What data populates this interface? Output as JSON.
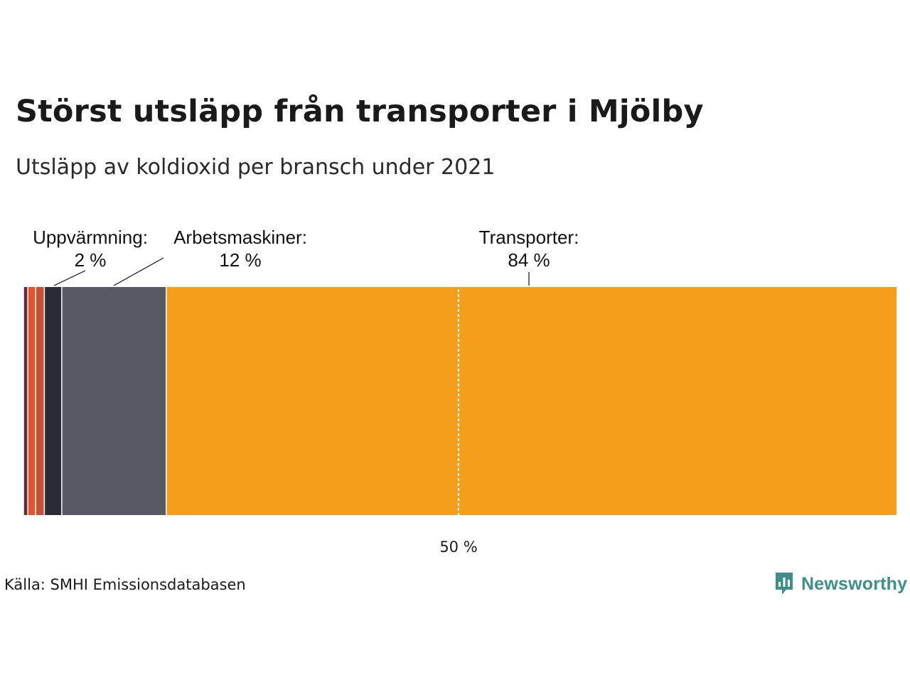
{
  "title": "Störst utsläpp från transporter i Mjölby",
  "subtitle": "Utsläpp av koldioxid per bransch under 2021",
  "source": "Källa: SMHI Emissionsdatabasen",
  "brand": {
    "name": "Newsworthy",
    "color": "#3c8f8a",
    "icon": "newsworthy-logo-icon"
  },
  "chart_data": {
    "type": "bar",
    "orientation": "horizontal-stacked-100",
    "title": "Störst utsläpp från transporter i Mjölby",
    "subtitle": "Utsläpp av koldioxid per bransch under 2021",
    "unit": "%",
    "xlim": [
      0,
      100
    ],
    "reference_line": {
      "value": 50,
      "label": "50 %"
    },
    "series": [
      {
        "name": "",
        "value": 0.5,
        "color": "#6b2737"
      },
      {
        "name": "",
        "value": 0.9,
        "color": "#e0562a"
      },
      {
        "name": "",
        "value": 1.0,
        "color": "#c8503a"
      },
      {
        "name": "Uppvärmning",
        "value": 2,
        "color": "#2b2b36",
        "label_title": "Uppvärmning:",
        "label_value": "2 %",
        "leader": "diagonal"
      },
      {
        "name": "Arbetsmaskiner",
        "value": 12,
        "color": "#585764",
        "label_title": "Arbetsmaskiner:",
        "label_value": "12 %",
        "leader": "diagonal"
      },
      {
        "name": "Transporter",
        "value": 84,
        "color": "#f59e1b",
        "label_title": "Transporter:",
        "label_value": "84 %",
        "leader": "vertical"
      }
    ]
  }
}
